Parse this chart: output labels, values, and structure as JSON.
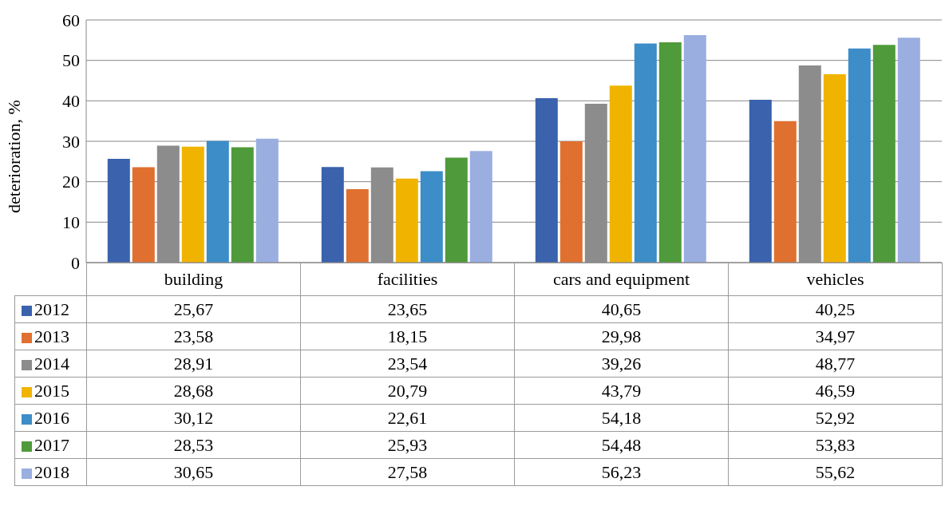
{
  "chart_data": {
    "type": "bar",
    "ylabel": "deterioration, %",
    "categories": [
      "building",
      "facilities",
      "cars and equipment",
      "vehicles"
    ],
    "ylim": [
      0,
      60
    ],
    "yticks": [
      0,
      10,
      20,
      30,
      40,
      50,
      60
    ],
    "grid": "y",
    "legend": "bottom",
    "series": [
      {
        "name": "2012",
        "color": "#3a62ad",
        "values": [
          25.67,
          23.65,
          40.65,
          40.25
        ],
        "value_labels": [
          "25,67",
          "23,65",
          "40,65",
          "40,25"
        ]
      },
      {
        "name": "2013",
        "color": "#e07030",
        "values": [
          23.58,
          18.15,
          29.98,
          34.97
        ],
        "value_labels": [
          "23,58",
          "18,15",
          "29,98",
          "34,97"
        ]
      },
      {
        "name": "2014",
        "color": "#8c8c8c",
        "values": [
          28.91,
          23.54,
          39.26,
          48.77
        ],
        "value_labels": [
          "28,91",
          "23,54",
          "39,26",
          "48,77"
        ]
      },
      {
        "name": "2015",
        "color": "#f0b400",
        "values": [
          28.68,
          20.79,
          43.79,
          46.59
        ],
        "value_labels": [
          "28,68",
          "20,79",
          "43,79",
          "46,59"
        ]
      },
      {
        "name": "2016",
        "color": "#3c8dc8",
        "values": [
          30.12,
          22.61,
          54.18,
          52.92
        ],
        "value_labels": [
          "30,12",
          "22,61",
          "54,18",
          "52,92"
        ]
      },
      {
        "name": "2017",
        "color": "#4f9a3a",
        "values": [
          28.53,
          25.93,
          54.48,
          53.83
        ],
        "value_labels": [
          "28,53",
          "25,93",
          "54,48",
          "53,83"
        ]
      },
      {
        "name": "2018",
        "color": "#9aaee0",
        "values": [
          30.65,
          27.58,
          56.23,
          55.62
        ],
        "value_labels": [
          "30,65",
          "27,58",
          "56,23",
          "55,62"
        ]
      }
    ]
  }
}
